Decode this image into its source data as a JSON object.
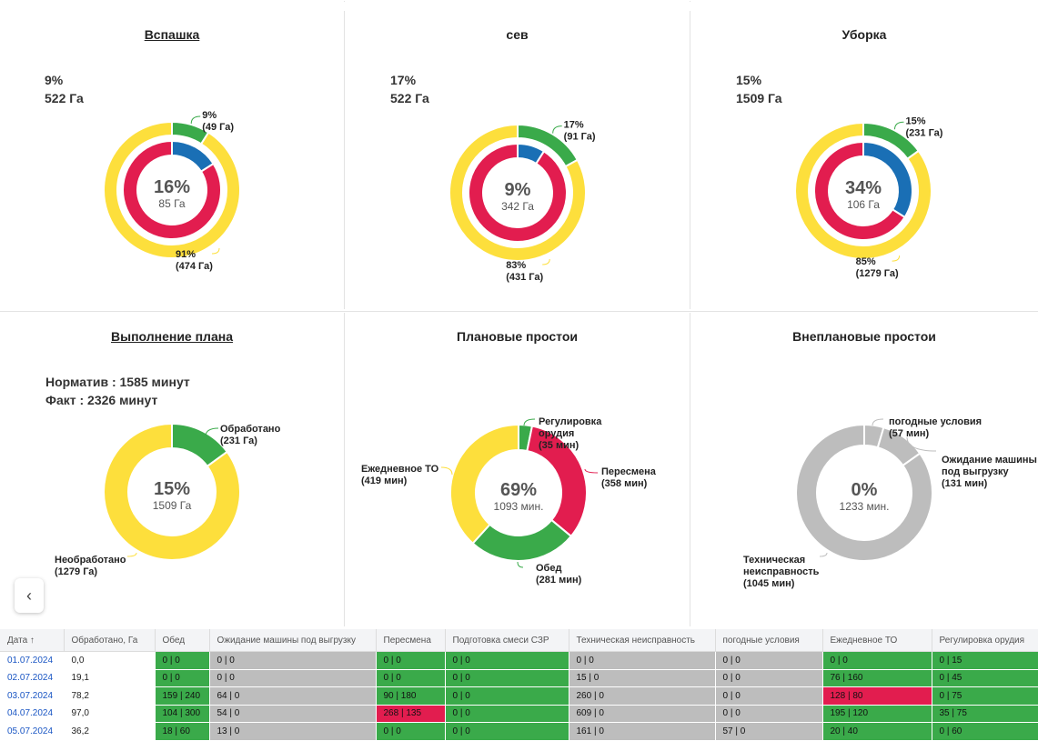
{
  "colors": {
    "green": "#3aaa4a",
    "blue": "#1a6fb5",
    "red": "#e21d4f",
    "yellow": "#fddf3c",
    "gray": "#bdbdbd"
  },
  "panels": {
    "vspashka": {
      "title": "Вспашка",
      "stat1": "9%",
      "stat2": "522 Га",
      "center_pct": "16%",
      "center_sub": "85 Га",
      "outer": [
        {
          "fraction": 0.09,
          "label1": "9%",
          "label2": "(49 Га)"
        },
        {
          "fraction": 0.91,
          "label1": "91%",
          "label2": "(474 Га)"
        }
      ],
      "inner_blue_fraction": 0.16
    },
    "sev": {
      "title": "сев",
      "stat1": "17%",
      "stat2": "522 Га",
      "center_pct": "9%",
      "center_sub": "342 Га",
      "outer": [
        {
          "fraction": 0.17,
          "label1": "17%",
          "label2": "(91 Га)"
        },
        {
          "fraction": 0.83,
          "label1": "83%",
          "label2": "(431 Га)"
        }
      ],
      "inner_blue_fraction": 0.09
    },
    "uborka": {
      "title": "Уборка",
      "stat1": "15%",
      "stat2": "1509 Га",
      "center_pct": "34%",
      "center_sub": "106 Га",
      "outer": [
        {
          "fraction": 0.15,
          "label1": "15%",
          "label2": "(231 Га)"
        },
        {
          "fraction": 0.85,
          "label1": "85%",
          "label2": "(1279 Га)"
        }
      ],
      "inner_blue_fraction": 0.34
    },
    "plan": {
      "title": "Выполнение плана",
      "stat1": "Норматив : 1585 минут",
      "stat2": "Факт : 2326 минут",
      "center_pct": "15%",
      "center_sub": "1509 Га",
      "slices": [
        {
          "fraction": 0.15,
          "label1": "Обработано",
          "label2": "(231 Га)"
        },
        {
          "fraction": 0.85,
          "label1": "Необработано",
          "label2": "(1279 Га)"
        }
      ]
    },
    "planned": {
      "title": "Плановые простои",
      "center_pct": "69%",
      "center_sub": "1093 мин.",
      "slices": [
        {
          "fraction": 0.032,
          "color": "green",
          "label1": "Регулировка",
          "label1b": "орудия",
          "label2": "(35 мин)"
        },
        {
          "fraction": 0.328,
          "color": "red",
          "label1": "Пересмена",
          "label2": "(358 мин)"
        },
        {
          "fraction": 0.257,
          "color": "green",
          "label1": "Обед",
          "label2": "(281 мин)"
        },
        {
          "fraction": 0.383,
          "color": "yellow",
          "label1": "Ежедневное ТО",
          "label2": "(419 мин)"
        }
      ]
    },
    "unplanned": {
      "title": "Внеплановые простои",
      "center_pct": "0%",
      "center_sub": "1233 мин.",
      "slices": [
        {
          "fraction": 0.046,
          "label1": "погодные условия",
          "label2": "(57 мин)"
        },
        {
          "fraction": 0.106,
          "label1": "Ожидание машины",
          "label1b": "под выгрузку",
          "label2": "(131 мин)"
        },
        {
          "fraction": 0.848,
          "label1": "Техническая",
          "label1b": "неисправность",
          "label2": "(1045 мин)"
        }
      ]
    }
  },
  "table": {
    "headers": [
      "Дата ↑",
      "Обработано, Га",
      "Обед",
      "Ожидание машины под выгрузку",
      "Пересмена",
      "Подготовка смеси СЗР",
      "Техническая неисправность",
      "погодные условия",
      "Ежедневное ТО",
      "Регулировка орудия"
    ],
    "rows": [
      {
        "cells": [
          "01.07.2024",
          "0,0",
          "0 | 0",
          "0 | 0",
          "0 | 0",
          "0 | 0",
          "0 | 0",
          "0 | 0",
          "0 | 0",
          "0 | 15"
        ],
        "colors": [
          "date",
          "plain",
          "g",
          "gr",
          "g",
          "g",
          "gr",
          "gr",
          "g",
          "g"
        ]
      },
      {
        "cells": [
          "02.07.2024",
          "19,1",
          "0 | 0",
          "0 | 0",
          "0 | 0",
          "0 | 0",
          "15 | 0",
          "0 | 0",
          "76 | 160",
          "0 | 45"
        ],
        "colors": [
          "date",
          "plain",
          "g",
          "gr",
          "g",
          "g",
          "gr",
          "gr",
          "g",
          "g"
        ]
      },
      {
        "cells": [
          "03.07.2024",
          "78,2",
          "159 | 240",
          "64 | 0",
          "90 | 180",
          "0 | 0",
          "260 | 0",
          "0 | 0",
          "128 | 80",
          "0 | 75"
        ],
        "colors": [
          "date",
          "plain",
          "g",
          "gr",
          "g",
          "g",
          "gr",
          "gr",
          "r",
          "g"
        ]
      },
      {
        "cells": [
          "04.07.2024",
          "97,0",
          "104 | 300",
          "54 | 0",
          "268 | 135",
          "0 | 0",
          "609 | 0",
          "0 | 0",
          "195 | 120",
          "35 | 75"
        ],
        "colors": [
          "date",
          "plain",
          "g",
          "gr",
          "r",
          "g",
          "gr",
          "gr",
          "g",
          "g"
        ]
      },
      {
        "cells": [
          "05.07.2024",
          "36,2",
          "18 | 60",
          "13 | 0",
          "0 | 0",
          "0 | 0",
          "161 | 0",
          "57 | 0",
          "20 | 40",
          "0 | 60"
        ],
        "colors": [
          "date",
          "plain",
          "g",
          "gr",
          "g",
          "g",
          "gr",
          "gr",
          "g",
          "g"
        ]
      }
    ]
  },
  "nav": {
    "back_icon": "chevron-left-icon"
  }
}
